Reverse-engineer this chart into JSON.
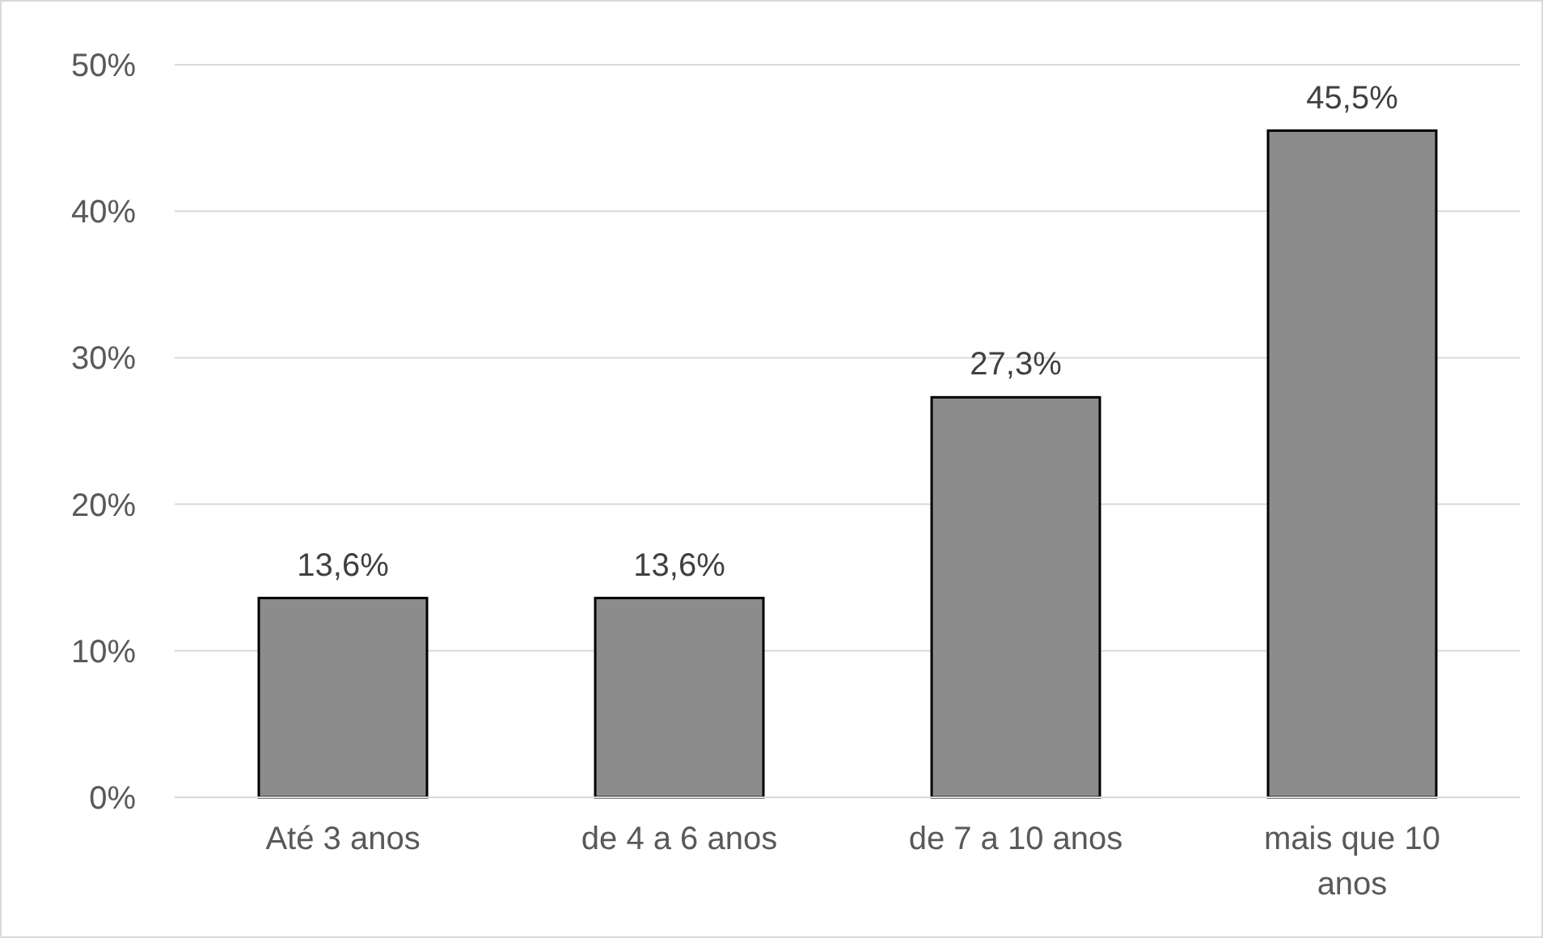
{
  "chart_data": {
    "type": "bar",
    "categories": [
      "Até 3 anos",
      "de 4 a 6 anos",
      "de 7 a 10 anos",
      "mais que 10 anos"
    ],
    "values": [
      13.6,
      13.6,
      27.3,
      45.5
    ],
    "color": "#8c8c8c",
    "value_labels": [
      "13,6%",
      "13,6%",
      "27,3%",
      "45,5%"
    ],
    "ylim": [
      0,
      50
    ],
    "yticks": [
      {
        "value": 0,
        "label": "0%"
      },
      {
        "value": 10,
        "label": "10%"
      },
      {
        "value": 20,
        "label": "20%"
      },
      {
        "value": 30,
        "label": "30%"
      },
      {
        "value": 40,
        "label": "40%"
      },
      {
        "value": 50,
        "label": "50%"
      }
    ],
    "grid": "y"
  }
}
